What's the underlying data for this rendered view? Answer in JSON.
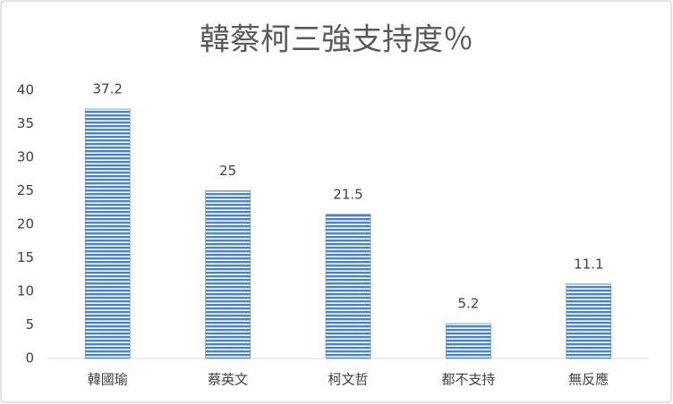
{
  "chart_data": {
    "type": "bar",
    "title": "韓蔡柯三強支持度％",
    "categories": [
      "韓國瑜",
      "蔡英文",
      "柯文哲",
      "都不支持",
      "無反應"
    ],
    "values": [
      37.2,
      25,
      21.5,
      5.2,
      11.1
    ],
    "color": "#4f81bd",
    "ylim": [
      0,
      40
    ],
    "yticks": [
      0,
      5,
      10,
      15,
      20,
      25,
      30,
      35,
      40
    ]
  }
}
